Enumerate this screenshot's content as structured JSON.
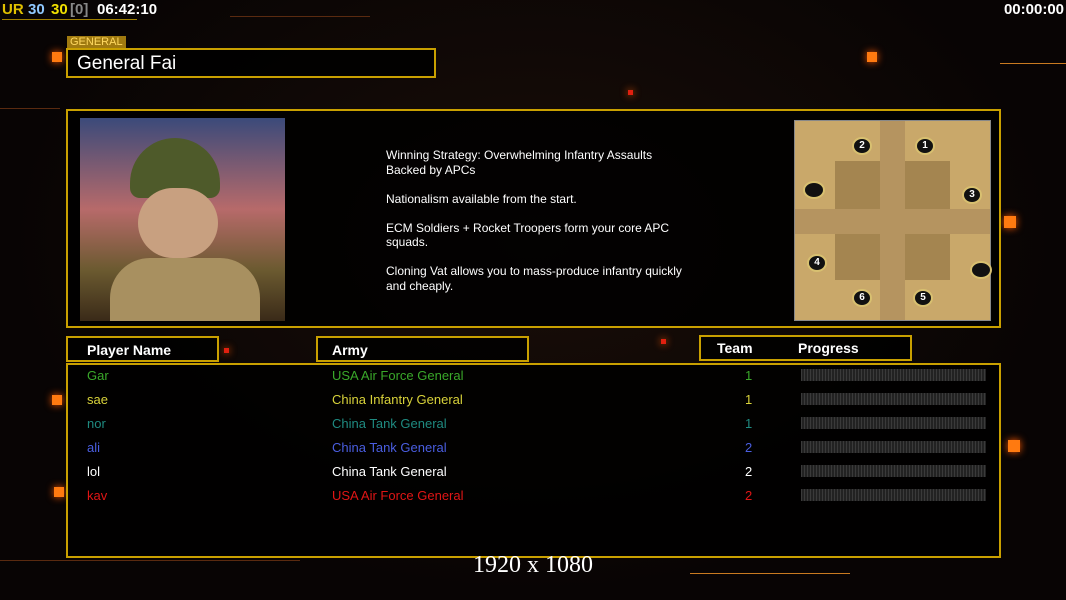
{
  "hud": {
    "ur": "UR",
    "a": "30",
    "b": "30",
    "c": "[0]",
    "clock": "06:42:10",
    "timer": "00:00:00"
  },
  "general": {
    "label": "GENERAL",
    "name": "General Fai"
  },
  "strategy": "Winning Strategy: Overwhelming Infantry Assaults\n Backed by APCs\n\nNationalism available from the start.\n\nECM Soldiers + Rocket Troopers form your core APC\n squads.\n\nCloning Vat allows you to mass-produce infantry quickly\n and cheaply.",
  "map": {
    "slots": [
      "1",
      "2",
      "3",
      "4",
      "5",
      "6"
    ]
  },
  "table": {
    "headers": {
      "name": "Player Name",
      "army": "Army",
      "team": "Team",
      "progress": "Progress"
    },
    "rows": [
      {
        "name": "Gar",
        "army": "USA Air Force General",
        "team": "1",
        "color": "#3aa82a",
        "progress": 0
      },
      {
        "name": "sae",
        "army": "China Infantry General",
        "team": "1",
        "color": "#d8d23a",
        "progress": 0
      },
      {
        "name": "nor",
        "army": "China Tank General",
        "team": "1",
        "color": "#1f8a80",
        "progress": 0
      },
      {
        "name": "ali",
        "army": "China Tank General",
        "team": "2",
        "color": "#4a5ee0",
        "progress": 0
      },
      {
        "name": "lol",
        "army": "China Tank General",
        "team": "2",
        "color": "#ffffff",
        "progress": 0
      },
      {
        "name": "kav",
        "army": "USA Air Force General",
        "team": "2",
        "color": "#e01515",
        "progress": 0
      }
    ]
  },
  "resolution": "1920 x 1080"
}
